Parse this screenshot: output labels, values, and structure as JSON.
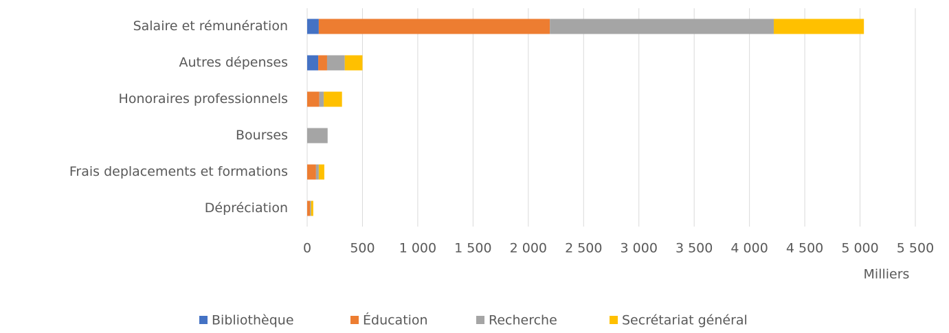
{
  "chart_data": {
    "type": "stacked_barh",
    "categories": [
      "Salaire et rémunération",
      "Autres dépenses",
      "Honoraires professionnels",
      "Bourses",
      "Frais deplacements et formations",
      "Dépréciation"
    ],
    "series": [
      {
        "name": "Bibliothèque",
        "color": "#4472c4",
        "values": [
          105,
          100,
          0,
          0,
          0,
          0
        ]
      },
      {
        "name": "Éducation",
        "color": "#ed7d31",
        "values": [
          2090,
          80,
          110,
          0,
          80,
          25
        ]
      },
      {
        "name": "Recherche",
        "color": "#a5a5a5",
        "values": [
          2025,
          160,
          40,
          185,
          25,
          10
        ]
      },
      {
        "name": "Secrétariat général",
        "color": "#ffc000",
        "values": [
          815,
          160,
          165,
          0,
          50,
          20
        ]
      }
    ],
    "xlabel": "Milliers",
    "xlim": [
      0,
      5500
    ],
    "xticks": [
      0,
      500,
      {
        "value": 1000,
        "label": "1 000"
      },
      {
        "value": 1500,
        "label": "1 500"
      },
      {
        "value": 2000,
        "label": "2 000"
      },
      {
        "value": 2500,
        "label": "2 500"
      },
      {
        "value": 3000,
        "label": "3 000"
      },
      {
        "value": 3500,
        "label": "3 500"
      },
      {
        "value": 4000,
        "label": "4 000"
      },
      {
        "value": 4500,
        "label": "4 500"
      },
      {
        "value": 5000,
        "label": "5 000"
      },
      {
        "value": 5500,
        "label": "5 500"
      }
    ],
    "grid": true,
    "legend": "bottom"
  }
}
